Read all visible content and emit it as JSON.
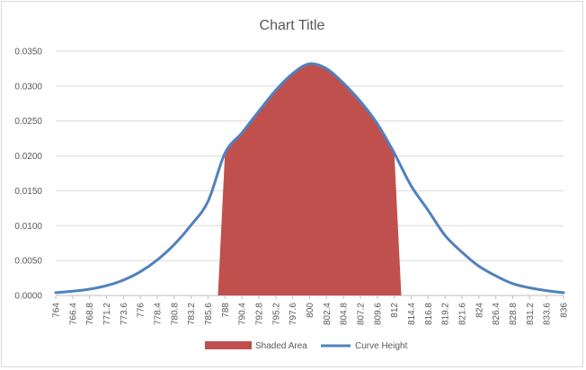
{
  "chart_data": {
    "type": "area",
    "title": "Chart Title",
    "xlabel": "",
    "ylabel": "",
    "ylim": [
      0,
      0.035
    ],
    "y_ticks": [
      "0.0000",
      "0.0050",
      "0.0100",
      "0.0150",
      "0.0200",
      "0.0250",
      "0.0300",
      "0.0350"
    ],
    "x_ticks": [
      "764",
      "766.4",
      "768.8",
      "771.2",
      "773.6",
      "776",
      "778.4",
      "780.8",
      "783.2",
      "785.6",
      "788",
      "790.4",
      "792.8",
      "795.2",
      "797.6",
      "800",
      "802.4",
      "804.8",
      "807.2",
      "809.6",
      "812",
      "814.4",
      "816.8",
      "819.2",
      "821.6",
      "824",
      "826.4",
      "828.8",
      "831.2",
      "833.6",
      "836"
    ],
    "grid": true,
    "legend_position": "bottom",
    "series": [
      {
        "name": "Shaded Area",
        "type": "area",
        "color": "#c0504d",
        "x": [
          787,
          788,
          790.4,
          792.8,
          795.2,
          797.6,
          800,
          802.4,
          804.8,
          807.2,
          809.6,
          812,
          813
        ],
        "values": [
          0.0,
          0.0204,
          0.0233,
          0.0264,
          0.0294,
          0.0318,
          0.0332,
          0.0325,
          0.0304,
          0.0278,
          0.0246,
          0.0204,
          0.0
        ]
      },
      {
        "name": "Curve Height",
        "type": "line",
        "color": "#4f81bd",
        "x": [
          764,
          766.4,
          768.8,
          771.2,
          773.6,
          776,
          778.4,
          780.8,
          783.2,
          785.6,
          788,
          790.4,
          792.8,
          795.2,
          797.6,
          800,
          802.4,
          804.8,
          807.2,
          809.6,
          812,
          814.4,
          816.8,
          819.2,
          821.6,
          824,
          826.4,
          828.8,
          831.2,
          833.6,
          836
        ],
        "values": [
          0.0004,
          0.0006,
          0.0009,
          0.0014,
          0.0022,
          0.0034,
          0.0051,
          0.0073,
          0.0101,
          0.0135,
          0.0204,
          0.0233,
          0.0264,
          0.0294,
          0.0318,
          0.0332,
          0.0325,
          0.0304,
          0.0278,
          0.0246,
          0.0204,
          0.0157,
          0.0122,
          0.0086,
          0.0062,
          0.0042,
          0.0028,
          0.0017,
          0.0011,
          0.0007,
          0.0004
        ]
      }
    ]
  }
}
